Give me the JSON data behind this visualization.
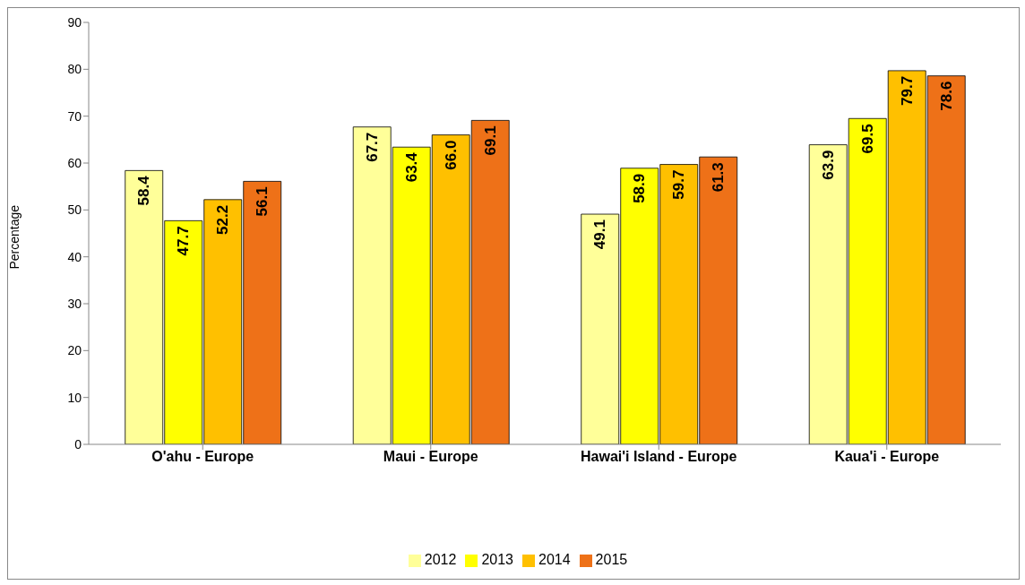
{
  "chart_data": {
    "type": "bar",
    "ylabel": "Percentage",
    "categories": [
      "O'ahu - Europe",
      "Maui - Europe",
      "Hawai'i Island - Europe",
      "Kaua'i - Europe"
    ],
    "series": [
      {
        "name": "2012",
        "color": "#ffff99",
        "values": [
          58.4,
          67.7,
          49.1,
          63.9
        ],
        "value_labels": [
          "58.4",
          "67.7",
          "49.1",
          "63.9"
        ]
      },
      {
        "name": "2013",
        "color": "#ffff00",
        "values": [
          47.7,
          63.4,
          58.9,
          69.5
        ],
        "value_labels": [
          "47.7",
          "63.4",
          "58.9",
          "69.5"
        ]
      },
      {
        "name": "2014",
        "color": "#ffc000",
        "values": [
          52.2,
          66.0,
          59.7,
          79.7
        ],
        "value_labels": [
          "52.2",
          "66.0",
          "59.7",
          "79.7"
        ]
      },
      {
        "name": "2015",
        "color": "#ee7118",
        "values": [
          56.1,
          69.1,
          61.3,
          78.6
        ],
        "value_labels": [
          "56.1",
          "69.1",
          "61.3",
          "78.6"
        ]
      }
    ],
    "ylim": [
      0,
      90
    ],
    "yticks": [
      0,
      10,
      20,
      30,
      40,
      50,
      60,
      70,
      80,
      90
    ],
    "grid": false,
    "legend": "bottom"
  }
}
